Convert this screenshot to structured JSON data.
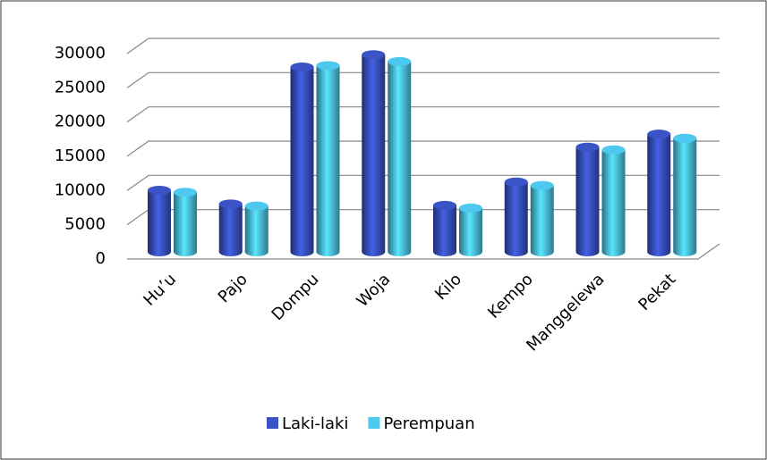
{
  "chart_data": {
    "type": "bar",
    "categories": [
      "Hu’u",
      "Pajo",
      "Dompu",
      "Woja",
      "Kilo",
      "Kempo",
      "Manggelewa",
      "Pekat"
    ],
    "series": [
      {
        "name": "Laki-laki",
        "color": "#3a54c8",
        "values": [
          9000,
          7000,
          27000,
          28800,
          6800,
          10200,
          15300,
          17200
        ]
      },
      {
        "name": "Perempuan",
        "color": "#4dc9ef",
        "values": [
          8700,
          6700,
          27200,
          27800,
          6400,
          9700,
          14900,
          16600
        ]
      }
    ],
    "ylim": [
      0,
      30000
    ],
    "yticks": [
      0,
      5000,
      10000,
      15000,
      20000,
      25000,
      30000
    ],
    "grid": true,
    "legend": "bottom"
  }
}
